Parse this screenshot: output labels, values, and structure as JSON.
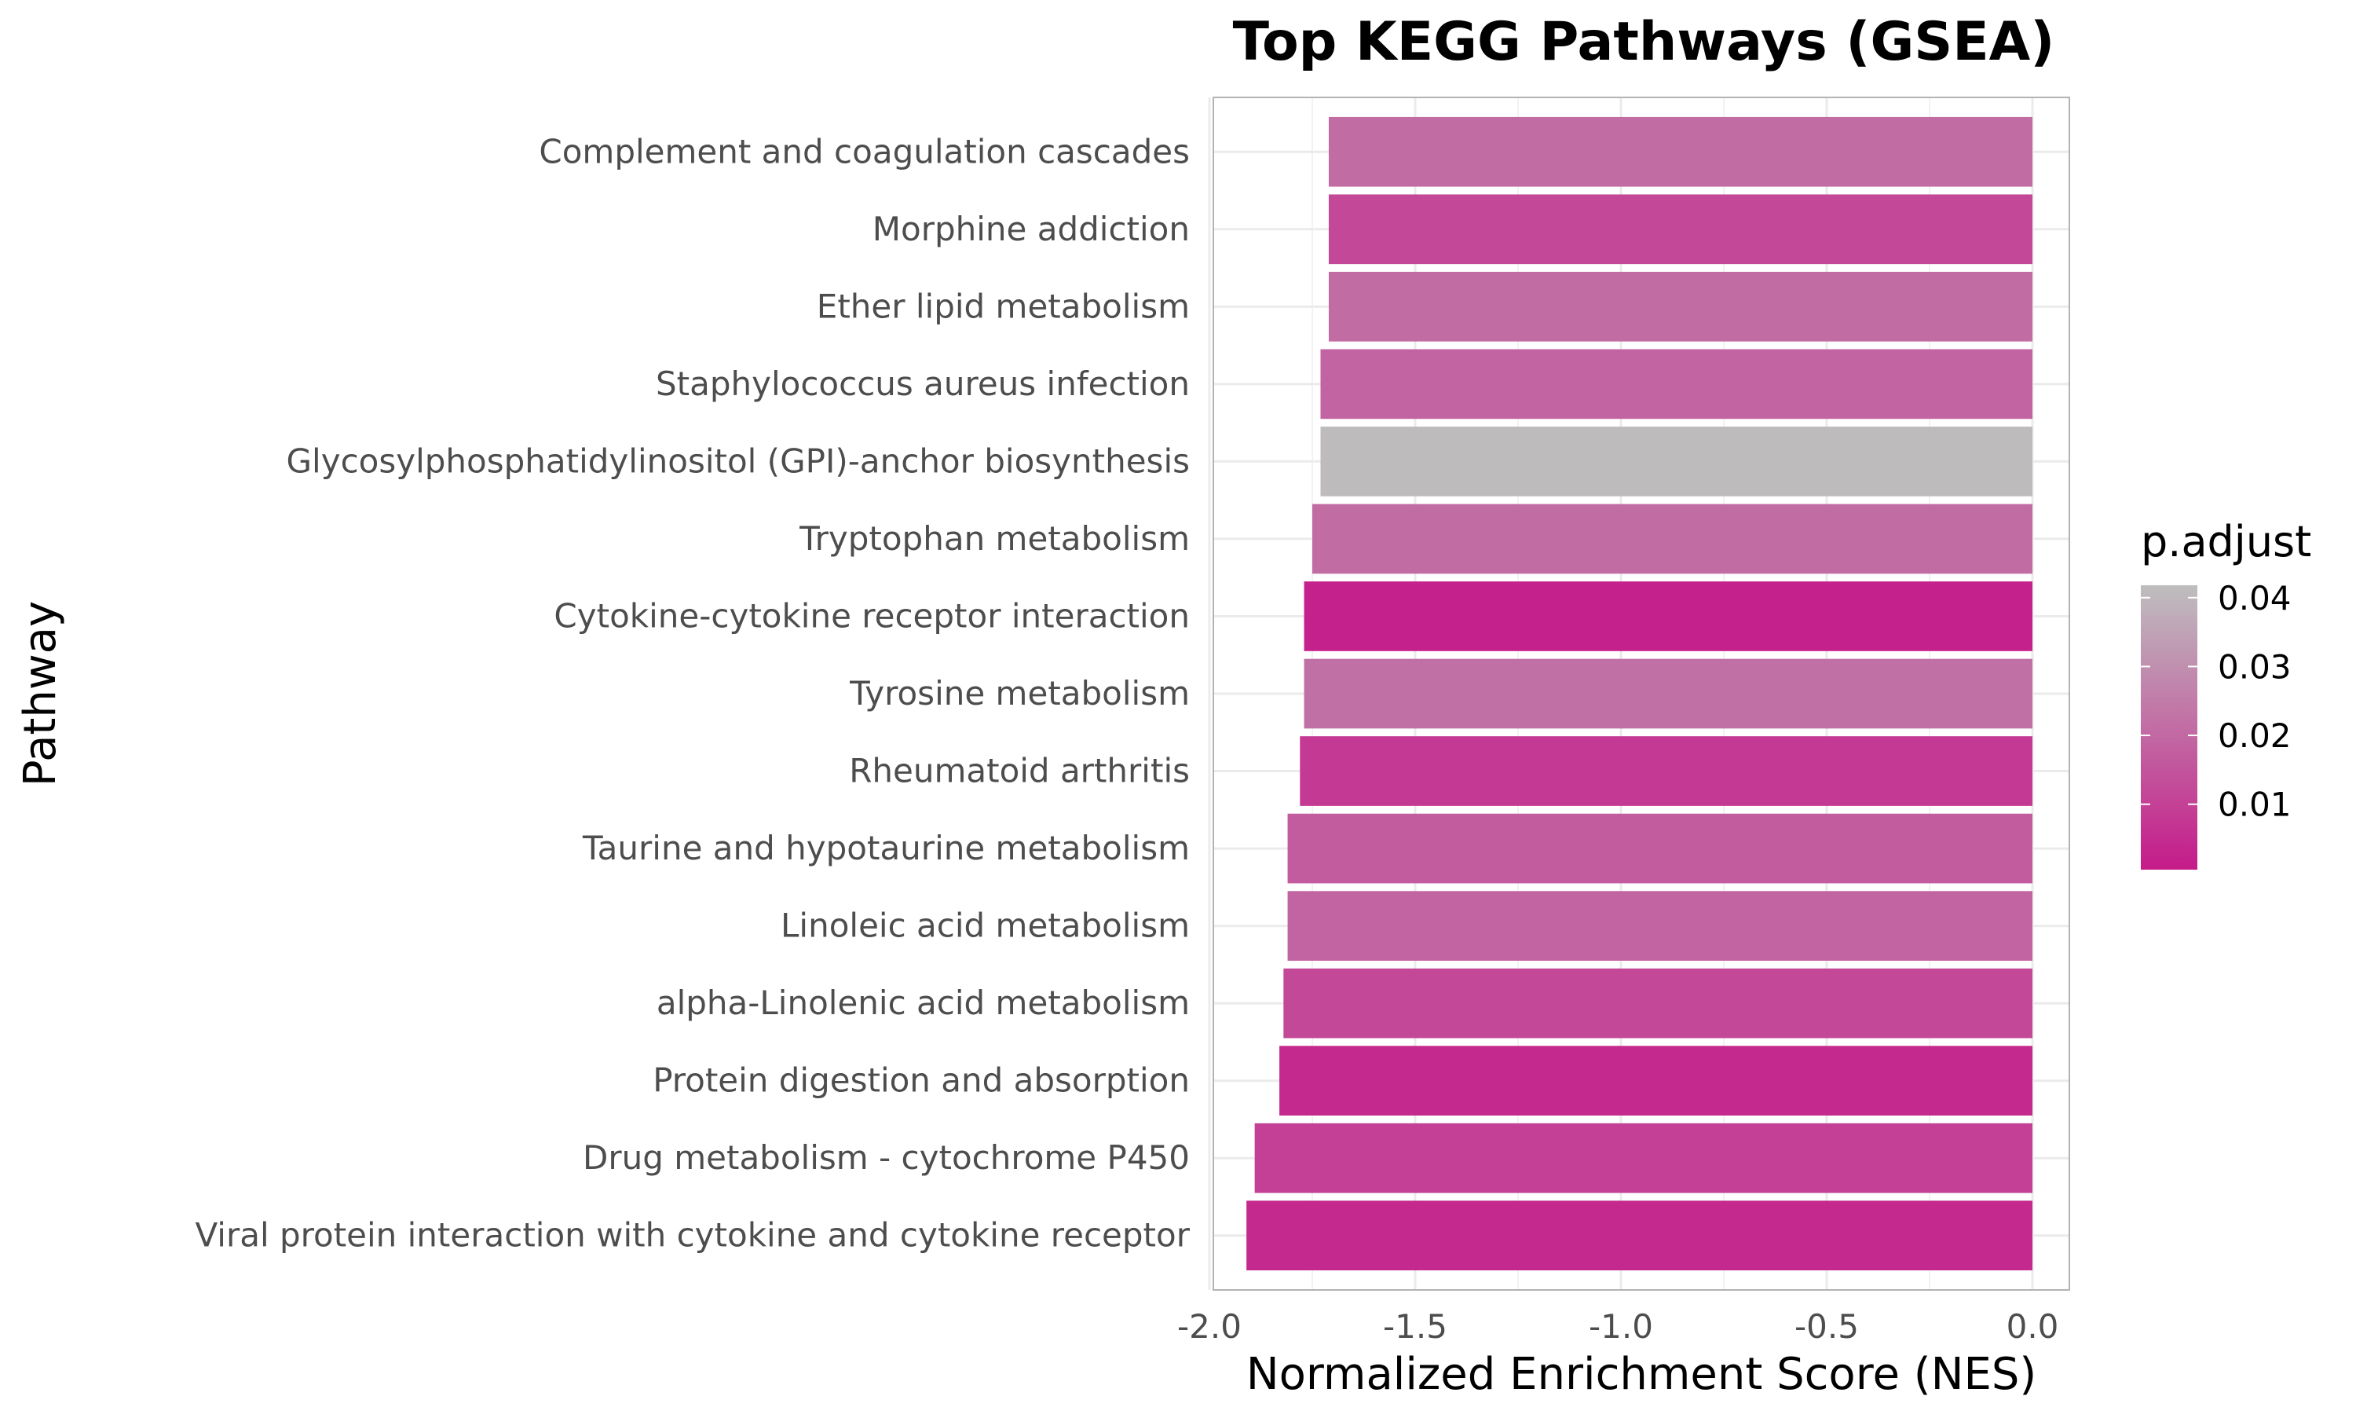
{
  "chart_data": {
    "type": "bar",
    "orientation": "horizontal",
    "title": "Top KEGG Pathways (GSEA)",
    "xlabel": "Normalized Enrichment Score (NES)",
    "ylabel": "Pathway",
    "xlim": [
      -2.0,
      0.0
    ],
    "xticks": [
      -2.0,
      -1.5,
      -1.0,
      -0.5,
      0.0
    ],
    "xtick_labels": [
      "-2.0",
      "-1.5",
      "-1.0",
      "-0.5",
      "0.0"
    ],
    "grid": true,
    "legend": {
      "title": "p.adjust",
      "placement": "right",
      "range": [
        0.0005,
        0.0418
      ],
      "ticks": [
        0.04,
        0.03,
        0.02,
        0.01
      ],
      "tick_labels": [
        "0.04",
        "0.03",
        "0.02",
        "0.01"
      ],
      "color_low": "#c51b8a",
      "color_high": "#bebebe"
    },
    "categories": [
      "Complement and coagulation cascades",
      "Morphine addiction",
      "Ether lipid metabolism",
      "Staphylococcus aureus infection",
      "Glycosylphosphatidylinositol (GPI)-anchor biosynthesis",
      "Tryptophan metabolism",
      "Cytokine-cytokine receptor interaction",
      "Tyrosine metabolism",
      "Rheumatoid arthritis",
      "Taurine and hypotaurine metabolism",
      "Linoleic acid metabolism",
      "alpha-Linolenic acid metabolism",
      "Protein digestion and absorption",
      "Drug metabolism - cytochrome P450",
      "Viral protein interaction with cytokine and cytokine receptor"
    ],
    "values": [
      -1.71,
      -1.71,
      -1.71,
      -1.73,
      -1.73,
      -1.75,
      -1.77,
      -1.77,
      -1.78,
      -1.81,
      -1.81,
      -1.82,
      -1.83,
      -1.89,
      -1.91
    ],
    "p_adjust": [
      0.021,
      0.012,
      0.021,
      0.019,
      0.041,
      0.021,
      0.002,
      0.022,
      0.008,
      0.017,
      0.019,
      0.012,
      0.004,
      0.01,
      0.004
    ]
  }
}
